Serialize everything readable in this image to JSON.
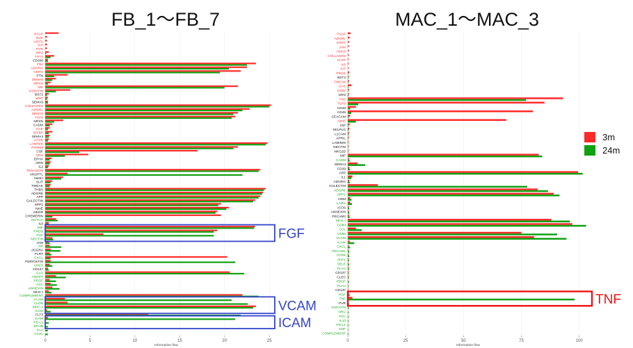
{
  "titles": {
    "left": "FB_1～FB_7",
    "right": "MAC_1～MAC_3"
  },
  "legend": [
    {
      "name": "3m",
      "color": "#ff2a2a"
    },
    {
      "name": "24m",
      "color": "#10a010"
    }
  ],
  "colors": {
    "red_label": "#ff3030",
    "green_label": "#22aa22",
    "black_label": "#111111",
    "blue_box": "#3344cc",
    "red_box": "#ee1111",
    "bar_red": "#ff2a2a",
    "bar_green": "#10a010"
  },
  "chart_data": [
    {
      "type": "bar",
      "orientation": "horizontal",
      "title": "FB_1～FB_7",
      "xlabel": "Information flow",
      "xlim": [
        0,
        27
      ],
      "xticks": [
        0,
        5,
        10,
        15,
        20,
        25
      ],
      "series": [
        {
          "name": "3m"
        },
        {
          "name": "24m"
        }
      ],
      "rows": [
        {
          "label": "PSAP",
          "color": "red",
          "v3": 1.5,
          "v24": 0
        },
        {
          "label": "NGF",
          "color": "red",
          "v3": 0.2,
          "v24": 0
        },
        {
          "label": "VISTA",
          "color": "red",
          "v3": 0.2,
          "v24": 0
        },
        {
          "label": "KIT",
          "color": "red",
          "v3": 0.2,
          "v24": 0
        },
        {
          "label": "PVR",
          "color": "red",
          "v3": 0.2,
          "v24": 0
        },
        {
          "label": "MPZ",
          "color": "red",
          "v3": 0.4,
          "v24": 0.1
        },
        {
          "label": "THY1",
          "color": "red",
          "v3": 1.0,
          "v24": 0.6
        },
        {
          "label": "CD200",
          "color": "black",
          "v3": 0.3,
          "v24": 0.3
        },
        {
          "label": "FN1",
          "color": "red",
          "v3": 23.5,
          "v24": 22.5
        },
        {
          "label": "ADGRG",
          "color": "red",
          "v3": 22.5,
          "v24": 20.5
        },
        {
          "label": "HSPG",
          "color": "red",
          "v3": 21.8,
          "v24": 19.5
        },
        {
          "label": "PTN",
          "color": "black",
          "v3": 2.5,
          "v24": 1.0
        },
        {
          "label": "SEMA6",
          "color": "red",
          "v3": 1.2,
          "v24": 0.8
        },
        {
          "label": "NRXN",
          "color": "red",
          "v3": 0.6,
          "v24": 0.3
        },
        {
          "label": "MK",
          "color": "red",
          "v3": 21.5,
          "v24": 20.0
        },
        {
          "label": "VISFATIN",
          "color": "red",
          "v3": 2.8,
          "v24": 1.2
        },
        {
          "label": "BST2",
          "color": "black",
          "v3": 0.4,
          "v24": 0.2
        },
        {
          "label": "WNT",
          "color": "red",
          "v3": 0.3,
          "v24": 0.2
        },
        {
          "label": "SEMA5",
          "color": "black",
          "v3": 0.3,
          "v24": 0.3
        },
        {
          "label": "COLLAGEN",
          "color": "red",
          "v3": 25.2,
          "v24": 25.0
        },
        {
          "label": "ADGRL",
          "color": "red",
          "v3": 22.8,
          "v24": 22.0
        },
        {
          "label": "SEMA3",
          "color": "red",
          "v3": 21.5,
          "v24": 21.0
        },
        {
          "label": "TGFb",
          "color": "red",
          "v3": 21.2,
          "v24": 20.8
        },
        {
          "label": "NRXN",
          "color": "black",
          "v3": 2.0,
          "v24": 1.0
        },
        {
          "label": "CADM",
          "color": "black",
          "v3": 0.8,
          "v24": 0.5
        },
        {
          "label": "GAP",
          "color": "red",
          "v3": 0.5,
          "v24": 0.3
        },
        {
          "label": "IGFBP",
          "color": "red",
          "v3": 0.8,
          "v24": 0.4
        },
        {
          "label": "SEMA4",
          "color": "black",
          "v3": 0.5,
          "v24": 0.4
        },
        {
          "label": "PTPR",
          "color": "red",
          "v3": 0.4,
          "v24": 0.3
        },
        {
          "label": "LAMININ",
          "color": "red",
          "v3": 24.8,
          "v24": 24.6
        },
        {
          "label": "PTPRM",
          "color": "red",
          "v3": 21.5,
          "v24": 21.0
        },
        {
          "label": "CSF",
          "color": "black",
          "v3": 17.0,
          "v24": 3.8
        },
        {
          "label": "GRN",
          "color": "red",
          "v3": 4.8,
          "v24": 2.2
        },
        {
          "label": "EPHA",
          "color": "black",
          "v3": 0.7,
          "v24": 0.5
        },
        {
          "label": "GRN",
          "color": "black",
          "v3": 0.6,
          "v24": 0.5
        },
        {
          "label": "IL2",
          "color": "black",
          "v3": 0.4,
          "v24": 0.3
        },
        {
          "label": "TENASCIN",
          "color": "red",
          "v3": 24.0,
          "v24": 23.8
        },
        {
          "label": "ANGPTL",
          "color": "black",
          "v3": 2.5,
          "v24": 22.0
        },
        {
          "label": "Netrin",
          "color": "black",
          "v3": 2.0,
          "v24": 1.8
        },
        {
          "label": "SLIT",
          "color": "black",
          "v3": 0.8,
          "v24": 0.6
        },
        {
          "label": "TWEAK",
          "color": "black",
          "v3": 0.6,
          "v24": 0.5
        },
        {
          "label": "THBS",
          "color": "black",
          "v3": 24.6,
          "v24": 24.4
        },
        {
          "label": "ADGRE",
          "color": "black",
          "v3": 24.3,
          "v24": 24.2
        },
        {
          "label": "APP",
          "color": "black",
          "v3": 24.0,
          "v24": 23.8
        },
        {
          "label": "GALECTIN",
          "color": "black",
          "v3": 23.4,
          "v24": 23.2
        },
        {
          "label": "SPP1",
          "color": "black",
          "v3": 19.6,
          "v24": 19.3
        },
        {
          "label": "ApoE",
          "color": "black",
          "v3": 20.5,
          "v24": 20.2
        },
        {
          "label": "NEGR",
          "color": "black",
          "v3": 19.2,
          "v24": 19.0
        },
        {
          "label": "CHEMERIN",
          "color": "black",
          "v3": 19.6,
          "v24": 0.8
        },
        {
          "label": "NOTCH",
          "color": "green",
          "v3": 1.2,
          "v24": 1.4
        },
        {
          "label": "IL6",
          "color": "black",
          "v3": 0.4,
          "v24": 0.4
        },
        {
          "label": "MIF",
          "color": "green",
          "v3": 23.4,
          "v24": 23.3
        },
        {
          "label": "PROS",
          "color": "green",
          "v3": 19.2,
          "v24": 18.8
        },
        {
          "label": "FGF",
          "color": "green",
          "v3": 6.5,
          "v24": 18.8
        },
        {
          "label": "NECTIN",
          "color": "green",
          "v3": 0.8,
          "v24": 0.9
        },
        {
          "label": "JAM",
          "color": "black",
          "v3": 0.4,
          "v24": 0.5
        },
        {
          "label": "GP",
          "color": "green",
          "v3": 0.5,
          "v24": 1.8
        },
        {
          "label": "ADGRA",
          "color": "black",
          "v3": 0.6,
          "v24": 1.7
        },
        {
          "label": "FLRT",
          "color": "black",
          "v3": 0.5,
          "v24": 0.7
        },
        {
          "label": "CXCL",
          "color": "green",
          "v3": 20.3,
          "v24": 0.6
        },
        {
          "label": "PERIOSTIN",
          "color": "black",
          "v3": 0.6,
          "v24": 21.2
        },
        {
          "label": "UNC5",
          "color": "green",
          "v3": 0.5,
          "v24": 0.8
        },
        {
          "label": "CD137",
          "color": "black",
          "v3": 0.3,
          "v24": 0.4
        },
        {
          "label": "GAS",
          "color": "green",
          "v3": 20.6,
          "v24": 22.2
        },
        {
          "label": "ANGPT",
          "color": "green",
          "v3": 1.2,
          "v24": 2.3
        },
        {
          "label": "PDGF",
          "color": "green",
          "v3": 0.5,
          "v24": 1.2
        },
        {
          "label": "CCL",
          "color": "green",
          "v3": 0.6,
          "v24": 1.3
        },
        {
          "label": "ANNEXIN",
          "color": "green",
          "v3": 0.8,
          "v24": 1.6
        },
        {
          "label": "MHC-I",
          "color": "black",
          "v3": 0.4,
          "v24": 0.7
        },
        {
          "label": "COMPLEMENT",
          "color": "green",
          "v3": 22.0,
          "v24": 23.8
        },
        {
          "label": "VCAM",
          "color": "green",
          "v3": 2.2,
          "v24": 20.8
        },
        {
          "label": "CLDN",
          "color": "green",
          "v3": 2.5,
          "v24": 22.6
        },
        {
          "label": "MHC-II",
          "color": "green",
          "v3": 23.5,
          "v24": 23.2
        },
        {
          "label": "ICOS",
          "color": "green",
          "v3": 0.2,
          "v24": 0.6
        },
        {
          "label": "FLT3",
          "color": "black",
          "v3": 11.5,
          "v24": 21.8
        },
        {
          "label": "ICAM",
          "color": "green",
          "v3": 0.3,
          "v24": 21.2
        },
        {
          "label": "PD-L1",
          "color": "green",
          "v3": 0,
          "v24": 0.4
        },
        {
          "label": "EPHB",
          "color": "green",
          "v3": 0,
          "v24": 0.3
        },
        {
          "label": "SAA",
          "color": "green",
          "v3": 0,
          "v24": 0.3
        },
        {
          "label": "CX3C",
          "color": "green",
          "v3": 0,
          "v24": 0.3
        }
      ],
      "annotations": [
        {
          "label": "FGF",
          "color": "blue",
          "rows": [
            51,
            54
          ]
        },
        {
          "label": "VCAM",
          "color": "blue",
          "rows": [
            70,
            73
          ]
        },
        {
          "label": "ICAM",
          "color": "blue",
          "rows": [
            75,
            77
          ]
        }
      ]
    },
    {
      "type": "bar",
      "orientation": "horizontal",
      "title": "MAC_1～MAC_3",
      "xlabel": "Information flow",
      "xlim": [
        0,
        104
      ],
      "xticks": [
        0,
        25,
        50,
        75,
        100
      ],
      "series": [
        {
          "name": "3m"
        },
        {
          "name": "24m"
        }
      ],
      "rows": [
        {
          "label": "PSAP",
          "color": "red",
          "v3": 1.2,
          "v24": 0
        },
        {
          "label": "ADGRL",
          "color": "red",
          "v3": 0.8,
          "v24": 0
        },
        {
          "label": "VISTA",
          "color": "red",
          "v3": 0.5,
          "v24": 0
        },
        {
          "label": "JAM",
          "color": "red",
          "v3": 0.4,
          "v24": 0
        },
        {
          "label": "UNC5",
          "color": "red",
          "v3": 0.4,
          "v24": 0
        },
        {
          "label": "COLLAGEN",
          "color": "red",
          "v3": 0.4,
          "v24": 0
        },
        {
          "label": "FLRT",
          "color": "red",
          "v3": 0.3,
          "v24": 0
        },
        {
          "label": "IL6",
          "color": "red",
          "v3": 0.3,
          "v24": 0
        },
        {
          "label": "KIT",
          "color": "red",
          "v3": 0.3,
          "v24": 0
        },
        {
          "label": "PROS",
          "color": "red",
          "v3": 0.6,
          "v24": 0.2
        },
        {
          "label": "BST2",
          "color": "black",
          "v3": 0.4,
          "v24": 0.2
        },
        {
          "label": "TWEAK",
          "color": "red",
          "v3": 0.5,
          "v24": 0.2
        },
        {
          "label": "GAS",
          "color": "red",
          "v3": 1.6,
          "v24": 0.3
        },
        {
          "label": "CD52",
          "color": "red",
          "v3": 0.5,
          "v24": 0.2
        },
        {
          "label": "GRN",
          "color": "black",
          "v3": 0.4,
          "v24": 0.3
        },
        {
          "label": "FN1",
          "color": "red",
          "v3": 93.0,
          "v24": 77.0
        },
        {
          "label": "TGFb",
          "color": "red",
          "v3": 85.0,
          "v24": 4.5
        },
        {
          "label": "CD48",
          "color": "black",
          "v3": 3.5,
          "v24": 1.0
        },
        {
          "label": "CD45",
          "color": "black",
          "v3": 80.0,
          "v24": 1.5
        },
        {
          "label": "CEACAM",
          "color": "black",
          "v3": 1.0,
          "v24": 0.4
        },
        {
          "label": "ApoE",
          "color": "red",
          "v3": 68.5,
          "v24": 3.5
        },
        {
          "label": "IGF",
          "color": "black",
          "v3": 0.8,
          "v24": 0.3
        },
        {
          "label": "SELPLG",
          "color": "black",
          "v3": 0.6,
          "v24": 0.3
        },
        {
          "label": "L1CAM",
          "color": "black",
          "v3": 0.5,
          "v24": 0.3
        },
        {
          "label": "APRIL",
          "color": "black",
          "v3": 0.4,
          "v24": 0.2
        },
        {
          "label": "LAMININ",
          "color": "black",
          "v3": 0.3,
          "v24": 0.2
        },
        {
          "label": "NECTIN",
          "color": "black",
          "v3": 0.3,
          "v24": 0.2
        },
        {
          "label": "NKG2D",
          "color": "black",
          "v3": 0.3,
          "v24": 0.2
        },
        {
          "label": "MIF",
          "color": "black",
          "v3": 82.5,
          "v24": 84.0
        },
        {
          "label": "CADM",
          "color": "green",
          "v3": 0.5,
          "v24": 0.8
        },
        {
          "label": "SEMA4",
          "color": "black",
          "v3": 4.2,
          "v24": 7.5
        },
        {
          "label": "CD39",
          "color": "black",
          "v3": 0.6,
          "v24": 0.9
        },
        {
          "label": "APP",
          "color": "black",
          "v3": 99.5,
          "v24": 101.5
        },
        {
          "label": "IL1",
          "color": "black",
          "v3": 2.0,
          "v24": 1.6
        },
        {
          "label": "ADGRG",
          "color": "black",
          "v3": 0.6,
          "v24": 0.8
        },
        {
          "label": "GALECTIN",
          "color": "black",
          "v3": 13.0,
          "v24": 77.5
        },
        {
          "label": "ADGRE",
          "color": "green",
          "v3": 82.0,
          "v24": 86.5
        },
        {
          "label": "SPP1",
          "color": "green",
          "v3": 89.0,
          "v24": 91.5
        },
        {
          "label": "OSM",
          "color": "black",
          "v3": 1.0,
          "v24": 1.6
        },
        {
          "label": "LAIR1",
          "color": "green",
          "v3": 1.0,
          "v24": 1.8
        },
        {
          "label": "ICOS",
          "color": "black",
          "v3": 0.4,
          "v24": 0.6
        },
        {
          "label": "ANNEXIN",
          "color": "black",
          "v3": 0.4,
          "v24": 0.6
        },
        {
          "label": "PECAM2",
          "color": "black",
          "v3": 0.5,
          "v24": 0.8
        },
        {
          "label": "MHC-I",
          "color": "green",
          "v3": 88.0,
          "v24": 96.0
        },
        {
          "label": "CD80",
          "color": "green",
          "v3": 97.0,
          "v24": 103.0
        },
        {
          "label": "CCL",
          "color": "green",
          "v3": 3.5,
          "v24": 6.0
        },
        {
          "label": "CD86",
          "color": "green",
          "v3": 75.0,
          "v24": 90.5
        },
        {
          "label": "VCAM",
          "color": "green",
          "v3": 80.5,
          "v24": 94.5
        },
        {
          "label": "ICAM",
          "color": "green",
          "v3": 0.8,
          "v24": 2.8
        },
        {
          "label": "CXCL",
          "color": "green",
          "v3": 0.4,
          "v24": 0.9
        },
        {
          "label": "PECAM1",
          "color": "green",
          "v3": 0.3,
          "v24": 0.6
        },
        {
          "label": "PTPR",
          "color": "green",
          "v3": 0.3,
          "v24": 0.6
        },
        {
          "label": "SPP1",
          "color": "green",
          "v3": 0.3,
          "v24": 0.5
        },
        {
          "label": "SELE",
          "color": "green",
          "v3": 0.3,
          "v24": 0.5
        },
        {
          "label": "PLAU",
          "color": "green",
          "v3": 0.3,
          "v24": 0.5
        },
        {
          "label": "CD137",
          "color": "black",
          "v3": 0.3,
          "v24": 0.4
        },
        {
          "label": "CLEC",
          "color": "black",
          "v3": 0.3,
          "v24": 0.4
        },
        {
          "label": "PDGF",
          "color": "green",
          "v3": 0.2,
          "v24": 0.4
        },
        {
          "label": "PLAU",
          "color": "green",
          "v3": 0.2,
          "v24": 0.3
        },
        {
          "label": "CD137",
          "color": "black",
          "v3": 0.2,
          "v24": 0.3
        },
        {
          "label": "HGF",
          "color": "green",
          "v3": 0.5,
          "v24": 0.8
        },
        {
          "label": "TNF",
          "color": "green",
          "v3": 2.0,
          "v24": 98.0
        },
        {
          "label": "PVR",
          "color": "black",
          "v3": 0.3,
          "v24": 0.5
        },
        {
          "label": "VISFATIN",
          "color": "green",
          "v3": 0.2,
          "v24": 0.4
        },
        {
          "label": "NRG",
          "color": "green",
          "v3": 0.1,
          "v24": 0.3
        },
        {
          "label": "NGL",
          "color": "green",
          "v3": 0.1,
          "v24": 0.3
        },
        {
          "label": "IL10",
          "color": "green",
          "v3": 0.1,
          "v24": 0.3
        },
        {
          "label": "PD-L1",
          "color": "green",
          "v3": 0.1,
          "v24": 0.3
        },
        {
          "label": "GDF",
          "color": "green",
          "v3": 0.1,
          "v24": 0.2
        },
        {
          "label": "COMPLEMENT",
          "color": "green",
          "v3": 0.1,
          "v24": 0.3
        }
      ],
      "annotations": [
        {
          "label": "TNF",
          "color": "red",
          "rows": [
            60,
            62
          ]
        }
      ]
    }
  ]
}
